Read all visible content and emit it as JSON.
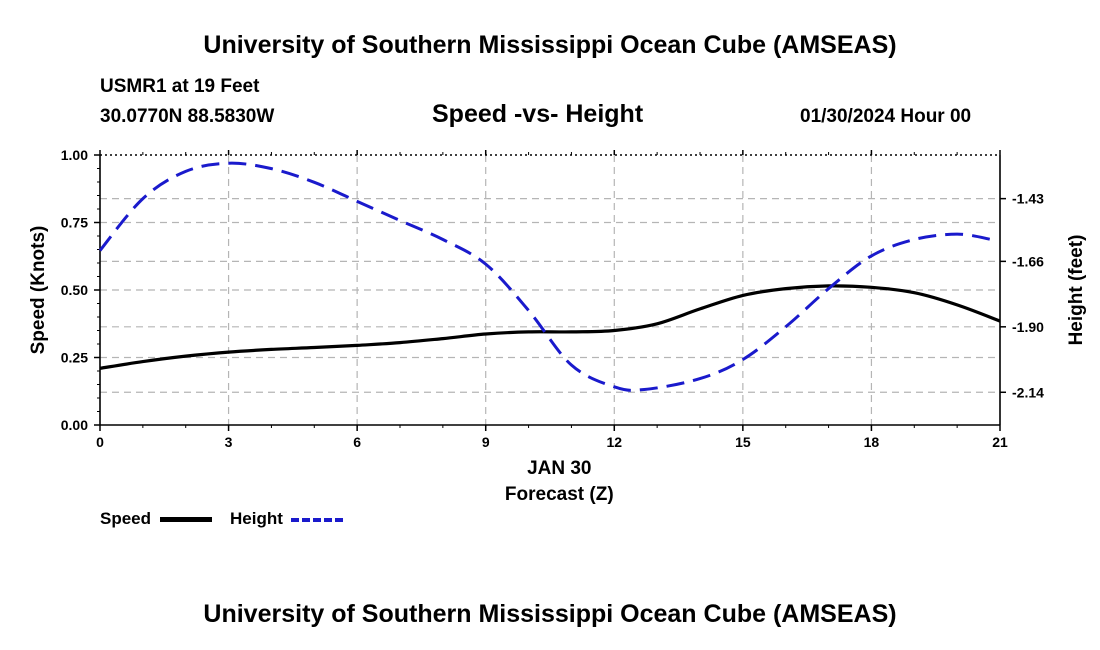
{
  "header": {
    "title_top": "University of Southern Mississippi Ocean Cube (AMSEAS)",
    "station": "USMR1 at 19 Feet",
    "coordinates": "30.0770N  88.5830W",
    "subtitle": "Speed -vs- Height",
    "datetime": "01/30/2024 Hour 00"
  },
  "footer": {
    "title_bottom": "University of Southern Mississippi Ocean Cube (AMSEAS)"
  },
  "legend": {
    "speed_label": "Speed",
    "height_label": "Height"
  },
  "colors": {
    "speed": "#000000",
    "height": "#1a1acc",
    "grid": "#b5b5b5"
  },
  "chart_data": {
    "type": "line",
    "title": "Speed -vs- Height",
    "xlabel": "Forecast (Z)",
    "x_sublabel": "JAN 30",
    "ylabel": "Speed (Knots)",
    "y2label": "Height (feet)",
    "xlim": [
      0,
      21
    ],
    "ylim": [
      0,
      1
    ],
    "y2lim": [
      -2.26,
      -1.27
    ],
    "grid": true,
    "x_ticks": [
      "0",
      "3",
      "6",
      "9",
      "12",
      "15",
      "18",
      "21"
    ],
    "y_ticks": [
      "0.00",
      "0.25",
      "0.50",
      "0.75",
      "1.00"
    ],
    "y2_ticks": [
      "-2.14",
      "-1.90",
      "-1.66",
      "-1.43"
    ],
    "series": [
      {
        "name": "Speed",
        "axis": "left",
        "style": "solid",
        "x": [
          0,
          1,
          2,
          3,
          4,
          5,
          6,
          7,
          8,
          9,
          10,
          11,
          12,
          13,
          14,
          15,
          16,
          17,
          18,
          19,
          20,
          21
        ],
        "values": [
          0.21,
          0.235,
          0.255,
          0.27,
          0.28,
          0.287,
          0.295,
          0.305,
          0.32,
          0.337,
          0.345,
          0.345,
          0.35,
          0.375,
          0.43,
          0.48,
          0.505,
          0.515,
          0.51,
          0.49,
          0.445,
          0.385
        ]
      },
      {
        "name": "Height",
        "axis": "right",
        "style": "dashed",
        "x": [
          0,
          1,
          2,
          3,
          4,
          5,
          6,
          7,
          8,
          9,
          10,
          11,
          12,
          12.7,
          14,
          15,
          16,
          17,
          18,
          19,
          20,
          20.8
        ],
        "values": [
          -1.62,
          -1.43,
          -1.33,
          -1.3,
          -1.32,
          -1.37,
          -1.44,
          -1.51,
          -1.58,
          -1.67,
          -1.84,
          -2.04,
          -2.12,
          -2.13,
          -2.09,
          -2.02,
          -1.9,
          -1.76,
          -1.64,
          -1.58,
          -1.56,
          -1.58
        ]
      }
    ]
  }
}
